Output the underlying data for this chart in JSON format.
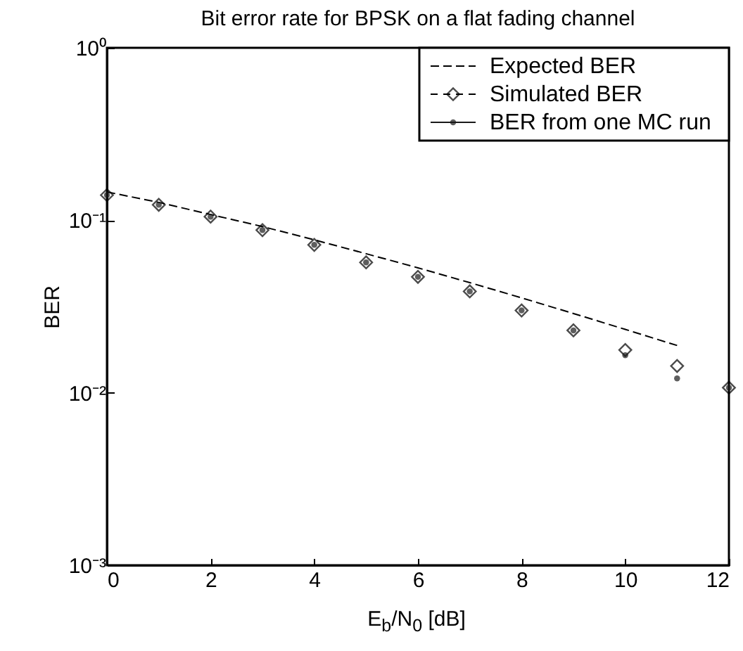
{
  "chart_data": {
    "type": "line",
    "title": "Bit error rate for BPSK on a flat fading channel",
    "xlabel": "E$_{b}$/N$_{0}$ [dB]",
    "ylabel": "BER",
    "x": [
      0,
      1,
      2,
      3,
      4,
      5,
      6,
      7,
      8,
      9,
      10,
      11,
      12
    ],
    "series": [
      {
        "name": "Expected BER",
        "line_style": "dashed",
        "marker": "none",
        "color": "#000000",
        "x": [
          0,
          1,
          2,
          3,
          4,
          5,
          6,
          7,
          8,
          9,
          10,
          11
        ],
        "values": [
          0.146,
          0.127,
          0.108,
          0.092,
          0.077,
          0.064,
          0.053,
          0.0435,
          0.0355,
          0.0288,
          0.0233,
          0.0188
        ]
      },
      {
        "name": "Simulated BER",
        "type": "scatter",
        "marker": "diamond",
        "color": "#000000",
        "values": [
          0.14,
          0.123,
          0.105,
          0.0877,
          0.072,
          0.057,
          0.047,
          0.0387,
          0.03,
          0.023,
          0.0177,
          0.0143,
          0.0107
        ]
      },
      {
        "name": "BER from one MC run",
        "type": "scatter",
        "marker": "circle",
        "color": "#1a1a1a",
        "values": [
          0.14,
          0.123,
          0.105,
          0.0877,
          0.072,
          0.057,
          0.047,
          0.0387,
          0.03,
          0.023,
          0.0165,
          0.0121,
          0.0107
        ]
      }
    ],
    "xlim": [
      0,
      12
    ],
    "xticks": [
      0,
      2,
      4,
      6,
      8,
      10,
      12
    ],
    "ylim": [
      0.001,
      1
    ],
    "yticks": [
      {
        "value": 0.001,
        "label": "10⁻³"
      },
      {
        "value": 0.01,
        "label": "10⁻²"
      },
      {
        "value": 0.1,
        "label": "10⁻¹"
      },
      {
        "value": 1,
        "label": "10⁰"
      }
    ],
    "log": "y",
    "grid": false,
    "legend": "top right"
  }
}
